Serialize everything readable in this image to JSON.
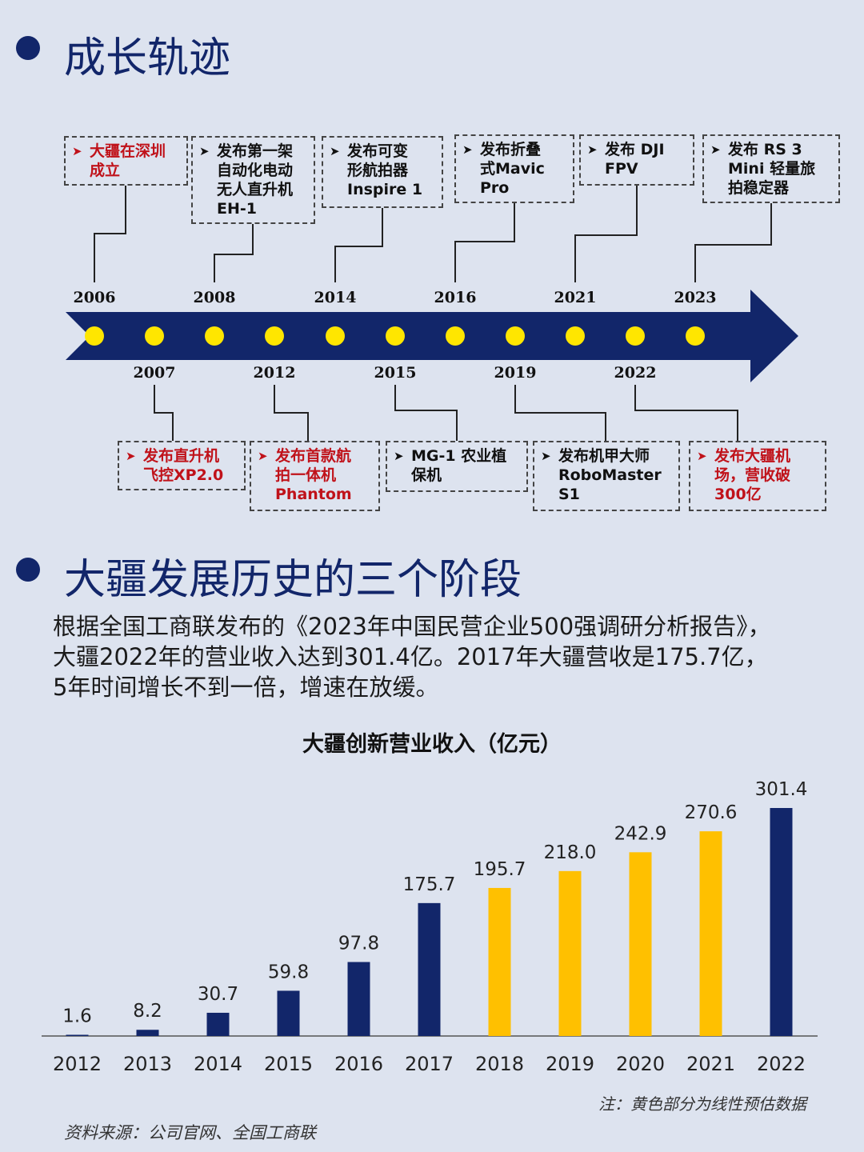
{
  "section1": {
    "title": "成长轨迹"
  },
  "timeline": {
    "colors": {
      "arrow": "#12266a",
      "dot": "#ffe600",
      "highlight_text": "#c0121a"
    },
    "top_years": [
      "2006",
      "2008",
      "2014",
      "2016",
      "2021",
      "2023"
    ],
    "bottom_years": [
      "2007",
      "2012",
      "2015",
      "2019",
      "2022"
    ],
    "top_events": [
      {
        "year": "2006",
        "text": "大疆在深圳\n成立",
        "highlight": true
      },
      {
        "year": "2008",
        "text": "发布第一架\n自动化电动\n无人直升机\nEH-1",
        "highlight": false
      },
      {
        "year": "2014",
        "text": "发布可变\n形航拍器\nInspire 1",
        "highlight": false
      },
      {
        "year": "2016",
        "text": "发布折叠\n式Mavic\nPro",
        "highlight": false
      },
      {
        "year": "2021",
        "text": "发布 DJI\nFPV",
        "highlight": false
      },
      {
        "year": "2023",
        "text": "发布 RS 3\nMini 轻量旅\n拍稳定器",
        "highlight": false
      }
    ],
    "bottom_events": [
      {
        "year": "2007",
        "text": "发布直升机\n飞控XP2.0",
        "highlight": true
      },
      {
        "year": "2012",
        "text": "发布首款航\n拍一体机\nPhantom",
        "highlight": true
      },
      {
        "year": "2015",
        "text": "MG-1 农业植\n保机",
        "highlight": false
      },
      {
        "year": "2019",
        "text": "发布机甲大师\nRoboMaster\nS1",
        "highlight": false
      },
      {
        "year": "2022",
        "text": "发布大疆机\n场，营收破\n300亿",
        "highlight": true
      }
    ]
  },
  "section2": {
    "title": "大疆发展历史的三个阶段",
    "paragraph": [
      "根据全国工商联发布的《2023年中国民营企业500强调研分析报告》，",
      "大疆2022年的营业收入达到301.4亿。2017年大疆营收是175.7亿，",
      "5年时间增长不到一倍，增速在放缓。"
    ]
  },
  "chart_data": {
    "type": "bar",
    "title": "大疆创新营业收入（亿元）",
    "xlabel": "",
    "ylabel": "",
    "categories": [
      "2012",
      "2013",
      "2014",
      "2015",
      "2016",
      "2017",
      "2018",
      "2019",
      "2020",
      "2021",
      "2022"
    ],
    "values": [
      1.6,
      8.2,
      30.7,
      59.8,
      97.8,
      175.7,
      195.7,
      218.0,
      242.9,
      270.6,
      301.4
    ],
    "value_labels": [
      "1.6",
      "8.2",
      "30.7",
      "59.8",
      "97.8",
      "175.7",
      "195.7",
      "218.0",
      "242.9",
      "270.6",
      "301.4"
    ],
    "estimated": [
      false,
      false,
      false,
      false,
      false,
      false,
      true,
      true,
      true,
      true,
      false
    ],
    "colors": {
      "actual": "#12266a",
      "estimated": "#ffc000"
    },
    "ylim": [
      0,
      301.4
    ],
    "grid": false,
    "legend": "none",
    "note": "注：黄色部分为线性预估数据"
  },
  "footer": {
    "source": "资料来源：公司官网、全国工商联"
  }
}
